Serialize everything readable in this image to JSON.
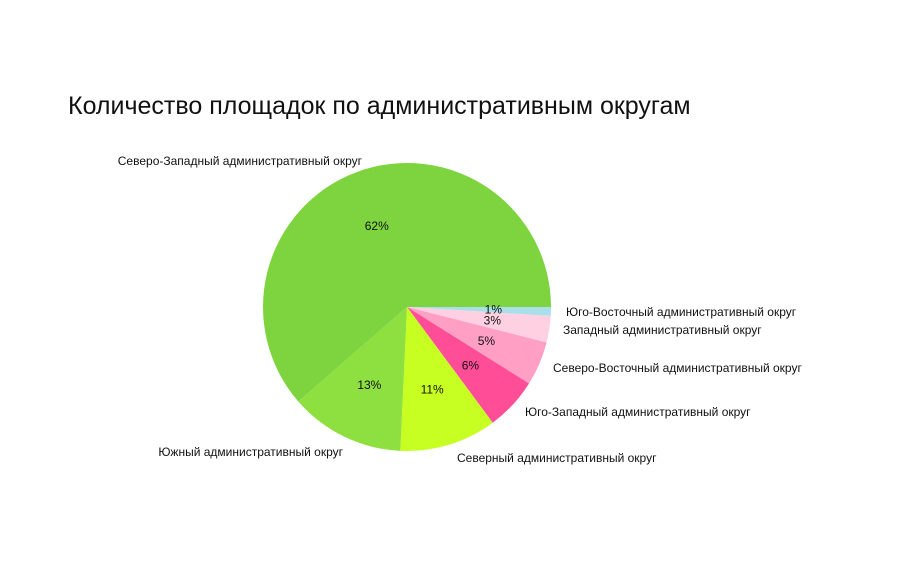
{
  "chart_data": {
    "type": "pie",
    "title": "Количество площадок по административным округам",
    "slices": [
      {
        "label": "Юго-Восточный административный округ",
        "value": 1,
        "pct_text": "1%",
        "color": "#a8dfe8"
      },
      {
        "label": "Западный административный округ",
        "value": 3,
        "pct_text": "3%",
        "color": "#ffd0e2"
      },
      {
        "label": "Северо-Восточный административный округ",
        "value": 5,
        "pct_text": "5%",
        "color": "#ff9fc4"
      },
      {
        "label": "Юго-Западный административный округ",
        "value": 6,
        "pct_text": "6%",
        "color": "#ff4e97"
      },
      {
        "label": "Северный административный округ",
        "value": 11,
        "pct_text": "11%",
        "color": "#c8ff23"
      },
      {
        "label": "Южный административный округ",
        "value": 13,
        "pct_text": "13%",
        "color": "#8ee040"
      },
      {
        "label": "Северо-Западный административный округ",
        "value": 62,
        "pct_text": "62%",
        "color": "#7dd43e"
      }
    ],
    "start_angle_deg": 0,
    "direction": "clockwise"
  }
}
